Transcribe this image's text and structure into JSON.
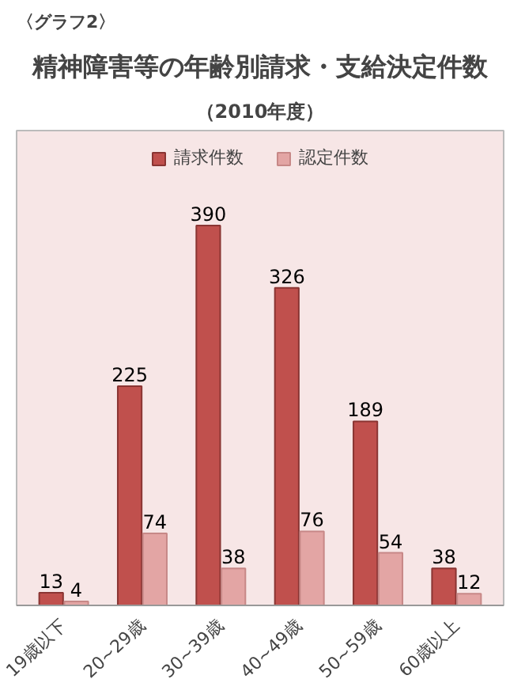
{
  "chart_data": {
    "type": "bar",
    "title": "精神障害等の年齢別請求・支給決定件数",
    "subtitle": "（2010年度）",
    "annotations": [
      "〈グラフ2〉"
    ],
    "categories": [
      "19歳以下",
      "20~29歳",
      "30~39歳",
      "40~49歳",
      "50~59歳",
      "60歳以上"
    ],
    "series": [
      {
        "name": "請求件数",
        "color": "#c0504d",
        "values": [
          13,
          225,
          390,
          326,
          189,
          38
        ]
      },
      {
        "name": "認定件数",
        "color": "#e3a5a4",
        "values": [
          4,
          74,
          38,
          76,
          54,
          12
        ]
      }
    ],
    "data_labels": true,
    "legend": "top",
    "grid": false
  }
}
